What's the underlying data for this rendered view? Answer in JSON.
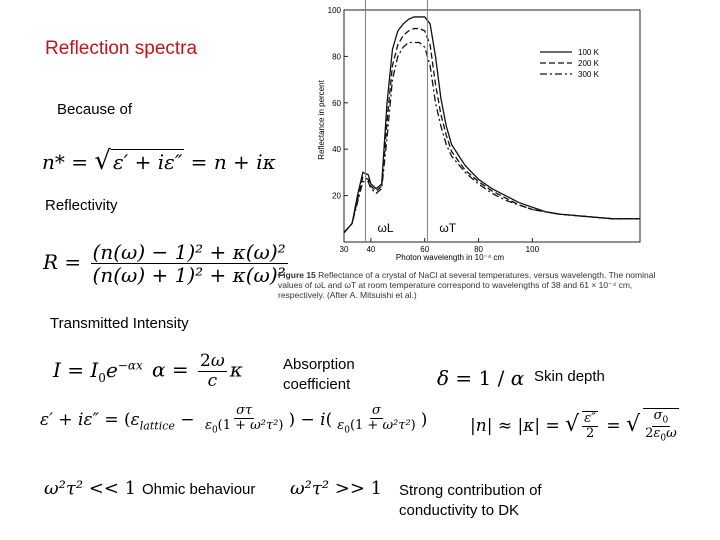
{
  "title": "Reflection spectra",
  "labels": {
    "because_of": "Because of",
    "reflectivity": "Reflectivity",
    "transmitted": "Transmitted Intensity",
    "absorption": "Absorption coefficient",
    "skin_depth": "Skin depth",
    "ohmic": "Ohmic behaviour",
    "strong": "Strong contribution of conductivity to DK"
  },
  "equations": {
    "refractive_index": "n* = √(ε′ + iε″) = n + iκ",
    "reflectivity": "R = ((n(ω) − 1)² + κ(ω)²) / ((n(ω) + 1)² + κ(ω)²)",
    "intensity": "I = I₀e^(−αx)",
    "alpha": "α = 2ω/c κ",
    "delta": "δ = 1/α",
    "dielectric": "ε′ + iε″ = (ε_lattice − στ/ε₀(1+ω²τ²)) − i(σ/ε₀(1+ω²τ²))",
    "skin": "|n| ≈ |κ| = √(ε″/2) = √(σ₀/2ε₀ω)",
    "low": "ω²τ² << 1",
    "high": "ω²τ² >> 1"
  },
  "figure": {
    "caption_bold": "Figure 15",
    "caption_text": "Reflectance of a crystal of NaCl at several temperatures, versus wavelength. The nominal values of ωL and ωT at room temperature correspond to wavelengths of 38 and 61 × 10⁻⁴ cm, respectively. (After A. Mitsuishi et al.)",
    "marker_L": "ωL",
    "marker_T": "ωT"
  },
  "chart_data": {
    "type": "line",
    "xlabel": "Photon wavelength in 10⁻⁴ cm",
    "ylabel": "Reflectance in percent",
    "xlim": [
      30,
      140
    ],
    "ylim": [
      0,
      100
    ],
    "x_ticks": [
      30,
      40,
      60,
      80,
      100
    ],
    "y_ticks": [
      20,
      40,
      60,
      80,
      100
    ],
    "legend": "top-right",
    "series": [
      {
        "name": "100 K",
        "dash": "solid",
        "x": [
          30,
          33,
          35,
          37,
          39,
          40,
          42,
          44,
          46,
          48,
          50,
          52,
          54,
          56,
          58,
          60,
          62,
          64,
          66,
          68,
          70,
          75,
          80,
          85,
          90,
          95,
          100,
          105,
          110,
          120,
          130,
          140
        ],
        "y": [
          4,
          8,
          20,
          30,
          29,
          25,
          23,
          25,
          60,
          83,
          91,
          94,
          96,
          97,
          97,
          97,
          94,
          80,
          62,
          50,
          42,
          33,
          27,
          23,
          20,
          17,
          15,
          13,
          12,
          11,
          10,
          10
        ]
      },
      {
        "name": "200 K",
        "dash": "dashed",
        "x": [
          30,
          33,
          35,
          37,
          39,
          40,
          42,
          44,
          46,
          48,
          50,
          52,
          54,
          56,
          58,
          60,
          62,
          64,
          66,
          68,
          70,
          75,
          80,
          85,
          90,
          95,
          100,
          105,
          110,
          120,
          130,
          140
        ],
        "y": [
          4,
          8,
          18,
          28,
          27,
          24,
          22,
          24,
          52,
          76,
          85,
          89,
          91,
          92,
          92,
          91,
          85,
          68,
          55,
          46,
          39,
          31,
          26,
          22,
          19,
          16,
          14,
          13,
          12,
          11,
          10,
          10
        ]
      },
      {
        "name": "300 K",
        "dash": "dash-dot",
        "x": [
          30,
          33,
          35,
          37,
          39,
          40,
          42,
          44,
          46,
          48,
          50,
          52,
          54,
          56,
          58,
          60,
          62,
          64,
          66,
          68,
          70,
          75,
          80,
          85,
          90,
          95,
          100,
          105,
          110,
          120,
          130,
          140
        ],
        "y": [
          4,
          8,
          17,
          26,
          26,
          23,
          21,
          23,
          45,
          70,
          80,
          84,
          86,
          86,
          86,
          84,
          76,
          60,
          50,
          42,
          37,
          30,
          25,
          21,
          18,
          16,
          14,
          13,
          12,
          11,
          10,
          10
        ]
      }
    ],
    "markers": [
      {
        "label": "ωL",
        "x": 38
      },
      {
        "label": "ωT",
        "x": 61
      }
    ]
  }
}
